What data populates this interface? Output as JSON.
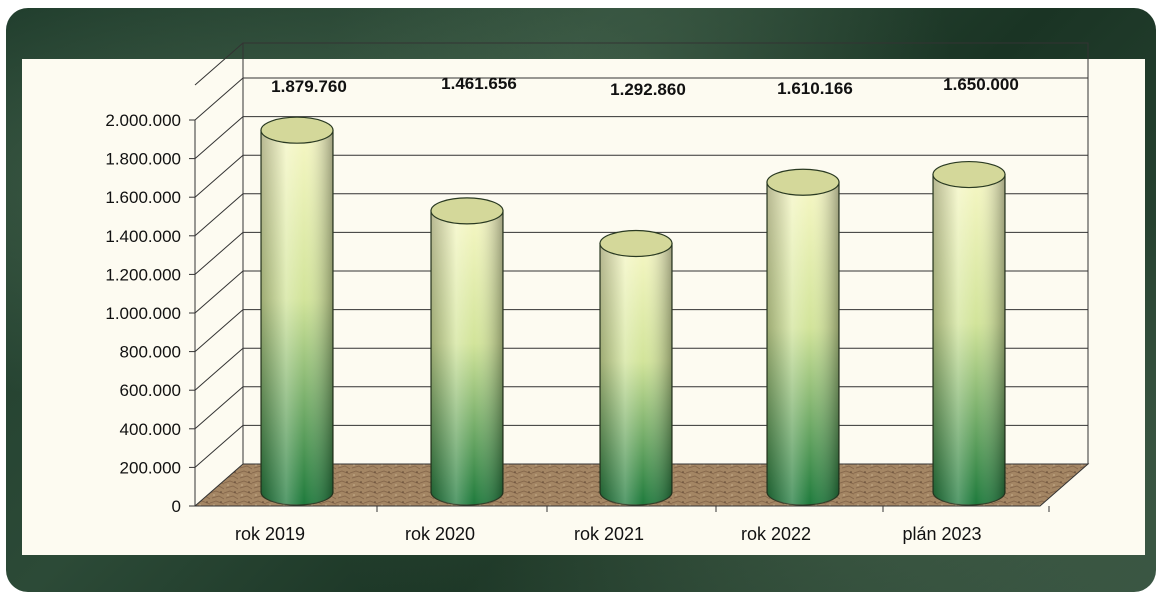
{
  "chart_data": {
    "type": "bar",
    "categories": [
      "rok 2019",
      "rok 2020",
      "rok 2021",
      "rok 2022",
      "plán 2023"
    ],
    "values": [
      1879760,
      1461656,
      1292860,
      1610166,
      1650000
    ],
    "value_labels": [
      "1.879.760",
      "1.461.656",
      "1.292.860",
      "1.610.166",
      "1.650.000"
    ],
    "y_ticks": [
      "0",
      "200.000",
      "400.000",
      "600.000",
      "800.000",
      "1.000.000",
      "1.200.000",
      "1.400.000",
      "1.600.000",
      "1.800.000",
      "2.000.000"
    ],
    "ylim": [
      0,
      2000000
    ],
    "grid": true,
    "style": "3d-cylinder",
    "colors": {
      "bar_top": "#f3f5b0",
      "bar_bottom": "#1f7a3e",
      "floor": "#9b7b5c",
      "frame": "#1f3a2a"
    }
  }
}
